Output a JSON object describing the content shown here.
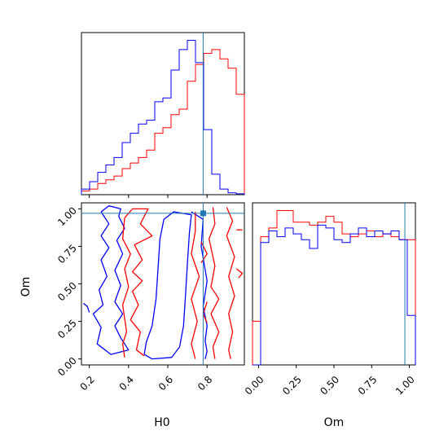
{
  "chart_data": {
    "type": "corner",
    "colors": {
      "red": "#ff0000",
      "blue": "#0000ff",
      "truth": "#1f77b4"
    },
    "truth": {
      "H0": 0.78,
      "Om": 0.97
    },
    "panels": {
      "h0_hist": {
        "xlim": [
          0.16,
          0.99
        ],
        "bin_edges": [
          0.16,
          0.2015,
          0.243,
          0.2845,
          0.326,
          0.3675,
          0.409,
          0.4505,
          0.492,
          0.5335,
          0.575,
          0.6165,
          0.658,
          0.6995,
          0.741,
          0.7825,
          0.824,
          0.8655,
          0.907,
          0.9485,
          0.99
        ],
        "series": [
          {
            "color": "red",
            "counts": [
              0.02,
              0.03,
              0.06,
              0.08,
              0.1,
              0.14,
              0.17,
              0.2,
              0.24,
              0.33,
              0.36,
              0.43,
              0.46,
              0.61,
              0.7,
              0.76,
              0.78,
              0.73,
              0.68,
              0.54
            ]
          },
          {
            "color": "blue",
            "counts": [
              0.03,
              0.07,
              0.12,
              0.16,
              0.2,
              0.28,
              0.33,
              0.38,
              0.4,
              0.5,
              0.52,
              0.67,
              0.78,
              0.83,
              0.71,
              0.35,
              0.11,
              0.03,
              0.01,
              0.005
            ]
          }
        ]
      },
      "om_hist": {
        "xlim": [
          -0.04,
          1.04
        ],
        "bin_edges": [
          -0.04,
          0.014,
          0.068,
          0.122,
          0.176,
          0.23,
          0.284,
          0.338,
          0.392,
          0.446,
          0.5,
          0.554,
          0.608,
          0.662,
          0.716,
          0.77,
          0.824,
          0.878,
          0.932,
          0.986,
          1.04
        ],
        "series": [
          {
            "color": "red",
            "counts": [
              0.3,
              0.88,
              0.94,
              1.06,
              1.06,
              0.98,
              0.98,
              0.96,
              0.98,
              1.02,
              0.98,
              0.9,
              0.88,
              0.9,
              0.92,
              0.88,
              0.9,
              0.88,
              0.86,
              0.86
            ]
          },
          {
            "color": "blue",
            "counts": [
              0.0,
              0.84,
              0.92,
              0.88,
              0.94,
              0.9,
              0.86,
              0.8,
              0.96,
              0.94,
              0.86,
              0.84,
              0.9,
              0.94,
              0.88,
              0.92,
              0.9,
              0.92,
              0.86,
              0.34
            ]
          }
        ]
      },
      "contour": {
        "xlim": [
          0.16,
          0.99
        ],
        "ylim": [
          -0.04,
          1.04
        ],
        "contours": [
          {
            "color": "blue",
            "points": [
              [
                0.26,
                0.98
              ],
              [
                0.3,
                0.9
              ],
              [
                0.26,
                0.82
              ],
              [
                0.3,
                0.74
              ],
              [
                0.26,
                0.66
              ],
              [
                0.29,
                0.55
              ],
              [
                0.25,
                0.46
              ],
              [
                0.27,
                0.36
              ],
              [
                0.22,
                0.3
              ],
              [
                0.26,
                0.21
              ],
              [
                0.24,
                0.1
              ],
              [
                0.31,
                0.03
              ],
              [
                0.4,
                0.06
              ],
              [
                0.36,
                0.14
              ],
              [
                0.33,
                0.22
              ],
              [
                0.37,
                0.3
              ],
              [
                0.33,
                0.38
              ],
              [
                0.36,
                0.49
              ],
              [
                0.33,
                0.59
              ],
              [
                0.37,
                0.7
              ],
              [
                0.34,
                0.79
              ],
              [
                0.38,
                0.87
              ],
              [
                0.35,
                0.95
              ],
              [
                0.36,
                1.0
              ],
              [
                0.3,
                1.02
              ],
              [
                0.26,
                0.98
              ]
            ]
          },
          {
            "color": "blue",
            "points": [
              [
                0.17,
                0.37
              ],
              [
                0.19,
                0.35
              ],
              [
                0.2,
                0.31
              ]
            ]
          },
          {
            "color": "blue",
            "points": [
              [
                0.48,
                0.03
              ],
              [
                0.52,
                0.0
              ],
              [
                0.62,
                0.01
              ],
              [
                0.66,
                0.08
              ],
              [
                0.68,
                0.22
              ],
              [
                0.69,
                0.42
              ],
              [
                0.7,
                0.64
              ],
              [
                0.71,
                0.84
              ],
              [
                0.72,
                0.96
              ],
              [
                0.63,
                0.98
              ],
              [
                0.58,
                0.93
              ],
              [
                0.56,
                0.8
              ],
              [
                0.55,
                0.6
              ],
              [
                0.54,
                0.4
              ],
              [
                0.52,
                0.22
              ],
              [
                0.49,
                0.11
              ],
              [
                0.48,
                0.03
              ]
            ]
          },
          {
            "color": "blue",
            "points": [
              [
                0.72,
                0.98
              ],
              [
                0.78,
                0.93
              ],
              [
                0.77,
                0.75
              ],
              [
                0.8,
                0.52
              ],
              [
                0.78,
                0.35
              ],
              [
                0.8,
                0.22
              ],
              [
                0.79,
                0.12
              ],
              [
                0.8,
                0.05
              ],
              [
                0.79,
                0.0
              ]
            ]
          },
          {
            "color": "red",
            "points": [
              [
                0.38,
                0.94
              ],
              [
                0.42,
                1.0
              ],
              [
                0.5,
                1.0
              ],
              [
                0.46,
                0.9
              ],
              [
                0.52,
                0.82
              ],
              [
                0.43,
                0.76
              ],
              [
                0.47,
                0.66
              ],
              [
                0.42,
                0.58
              ],
              [
                0.47,
                0.52
              ],
              [
                0.42,
                0.45
              ],
              [
                0.45,
                0.36
              ],
              [
                0.41,
                0.26
              ],
              [
                0.46,
                0.18
              ],
              [
                0.44,
                0.06
              ],
              [
                0.48,
                0.02
              ]
            ]
          },
          {
            "color": "red",
            "points": [
              [
                0.38,
                0.94
              ],
              [
                0.37,
                0.8
              ],
              [
                0.41,
                0.7
              ],
              [
                0.38,
                0.6
              ],
              [
                0.4,
                0.48
              ],
              [
                0.37,
                0.36
              ],
              [
                0.39,
                0.18
              ],
              [
                0.37,
                0.1
              ],
              [
                0.38,
                0.01
              ]
            ]
          },
          {
            "color": "red",
            "points": [
              [
                0.74,
                0.98
              ],
              [
                0.74,
                0.85
              ],
              [
                0.72,
                0.7
              ],
              [
                0.76,
                0.55
              ],
              [
                0.72,
                0.4
              ],
              [
                0.75,
                0.25
              ],
              [
                0.72,
                0.1
              ],
              [
                0.74,
                0.0
              ]
            ]
          },
          {
            "color": "red",
            "points": [
              [
                0.83,
                1.01
              ],
              [
                0.84,
                0.9
              ],
              [
                0.81,
                0.8
              ],
              [
                0.84,
                0.62
              ],
              [
                0.82,
                0.48
              ],
              [
                0.86,
                0.4
              ],
              [
                0.82,
                0.3
              ],
              [
                0.86,
                0.18
              ],
              [
                0.83,
                0.08
              ],
              [
                0.84,
                0.0
              ]
            ]
          },
          {
            "color": "red",
            "points": [
              [
                0.9,
                1.01
              ],
              [
                0.93,
                0.92
              ],
              [
                0.9,
                0.82
              ],
              [
                0.94,
                0.68
              ],
              [
                0.91,
                0.55
              ],
              [
                0.94,
                0.42
              ],
              [
                0.91,
                0.3
              ],
              [
                0.93,
                0.18
              ],
              [
                0.91,
                0.06
              ],
              [
                0.92,
                0.0
              ]
            ]
          },
          {
            "color": "red",
            "points": [
              [
                0.77,
                0.78
              ],
              [
                0.8,
                0.7
              ],
              [
                0.77,
                0.64
              ]
            ]
          },
          {
            "color": "red",
            "points": [
              [
                0.8,
                0.38
              ],
              [
                0.78,
                0.3
              ],
              [
                0.8,
                0.24
              ]
            ]
          },
          {
            "color": "red",
            "points": [
              [
                0.95,
                0.6
              ],
              [
                0.98,
                0.57
              ],
              [
                0.96,
                0.54
              ]
            ]
          },
          {
            "color": "red",
            "points": [
              [
                0.95,
                0.86
              ],
              [
                0.98,
                0.86
              ]
            ]
          }
        ]
      }
    },
    "ticks": {
      "h0": {
        "values": [
          0.2,
          0.4,
          0.6,
          0.8
        ],
        "labels": [
          "0.2",
          "0.4",
          "0.6",
          "0.8"
        ]
      },
      "om_y": {
        "values": [
          0.0,
          0.25,
          0.5,
          0.75,
          1.0
        ],
        "labels": [
          "0.00",
          "0.25",
          "0.50",
          "0.75",
          "1.00"
        ]
      },
      "om_x": {
        "values": [
          0.0,
          0.25,
          0.5,
          0.75,
          1.0
        ],
        "labels": [
          "0.00",
          "0.25",
          "0.50",
          "0.75",
          "1.00"
        ]
      }
    },
    "labels": {
      "h0_x": "H0",
      "om_y": "Om",
      "om_x": "Om"
    }
  }
}
